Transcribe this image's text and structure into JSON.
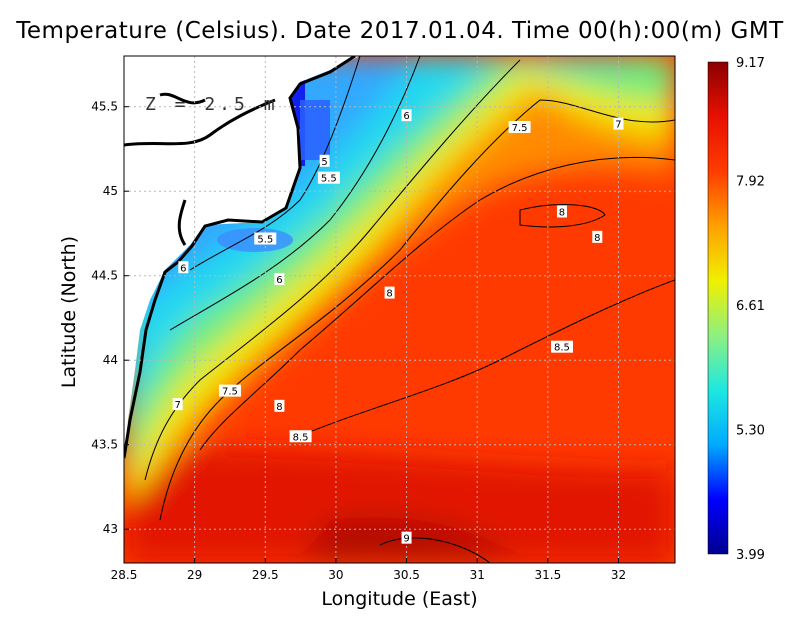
{
  "chart_data": {
    "type": "heatmap",
    "title": "Temperature (Celsius). Date 2017.01.04. Time 00(h):00(m) GMT",
    "annotation": "Z = 2.5 m",
    "xlabel": "Longitude (East)",
    "ylabel": "Latitude (North)",
    "xlim": [
      28.5,
      32.4
    ],
    "ylim": [
      42.8,
      45.8
    ],
    "x_ticks": [
      "28.5",
      "29",
      "29.5",
      "30",
      "30.5",
      "31",
      "31.5",
      "32"
    ],
    "y_ticks": [
      "43",
      "43.5",
      "44",
      "44.5",
      "45",
      "45.5"
    ],
    "grid": true,
    "colorbar": {
      "min": 3.99,
      "max": 9.17,
      "tick_labels": [
        "9.17",
        "7.92",
        "6.61",
        "5.30",
        "3.99"
      ],
      "colormap": [
        "#00008f",
        "#0000ff",
        "#00aaff",
        "#1ee8e0",
        "#8ef080",
        "#f0f000",
        "#ffa000",
        "#ff3c00",
        "#e81000",
        "#8b0000"
      ]
    },
    "contour_labels": [
      {
        "text": "6",
        "lon": 30.5,
        "lat": 45.45
      },
      {
        "text": "7.5",
        "lon": 31.3,
        "lat": 45.38
      },
      {
        "text": "7",
        "lon": 32.0,
        "lat": 45.4
      },
      {
        "text": "5",
        "lon": 29.92,
        "lat": 45.18
      },
      {
        "text": "5.5",
        "lon": 29.95,
        "lat": 45.08
      },
      {
        "text": "8",
        "lon": 31.6,
        "lat": 44.88
      },
      {
        "text": "8",
        "lon": 31.85,
        "lat": 44.73
      },
      {
        "text": "5.5",
        "lon": 29.5,
        "lat": 44.72
      },
      {
        "text": "6",
        "lon": 28.92,
        "lat": 44.55
      },
      {
        "text": "6",
        "lon": 29.6,
        "lat": 44.48
      },
      {
        "text": "8",
        "lon": 30.38,
        "lat": 44.4
      },
      {
        "text": "8.5",
        "lon": 31.6,
        "lat": 44.08
      },
      {
        "text": "7.5",
        "lon": 29.25,
        "lat": 43.82
      },
      {
        "text": "7",
        "lon": 28.88,
        "lat": 43.74
      },
      {
        "text": "8",
        "lon": 29.6,
        "lat": 43.73
      },
      {
        "text": "8.5",
        "lon": 29.75,
        "lat": 43.55
      },
      {
        "text": "9",
        "lon": 30.5,
        "lat": 42.95
      }
    ]
  },
  "colors": {
    "land": "#ffffff",
    "coast": "#000000",
    "grid": "#b8b8b8"
  }
}
